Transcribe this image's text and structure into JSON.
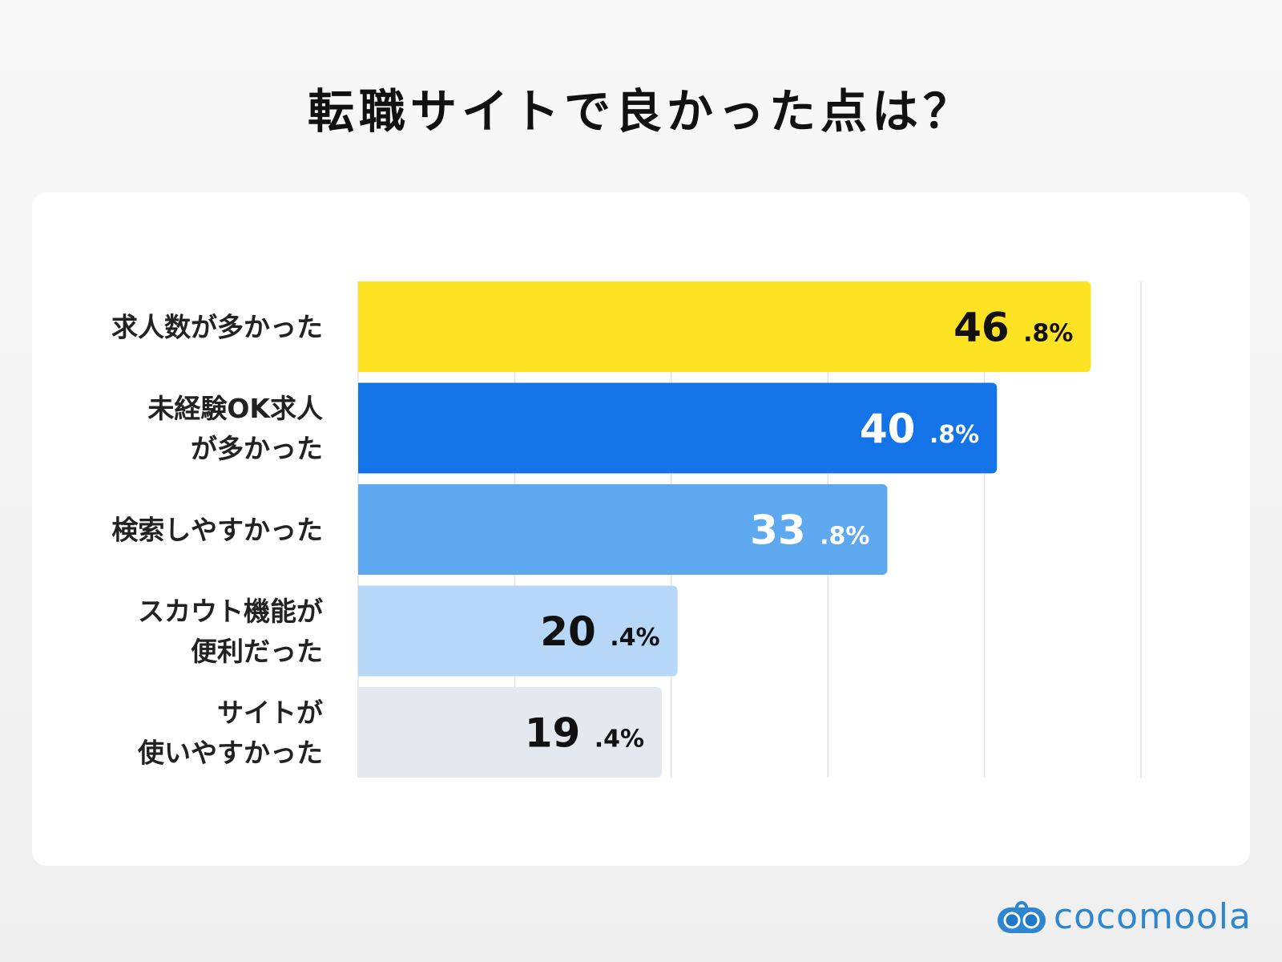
{
  "chart_data": {
    "type": "bar",
    "orientation": "horizontal",
    "title": "転職サイトで良かった点は？",
    "categories": [
      [
        "求人数が多かった"
      ],
      [
        "未経験OK求人",
        "が多かった"
      ],
      [
        "検索しやすかった"
      ],
      [
        "スカウト機能が",
        "便利だった"
      ],
      [
        "サイトが",
        "使いやすかった"
      ]
    ],
    "values": [
      46.8,
      40.8,
      33.8,
      20.4,
      19.4
    ],
    "value_unit": "%",
    "bar_colors": [
      "#fde324",
      "#1473e6",
      "#5ea8ef",
      "#b6d7f8",
      "#e4e8ef"
    ],
    "label_colors": [
      "#111111",
      "#ffffff",
      "#ffffff",
      "#111111",
      "#111111"
    ],
    "xlim": [
      0,
      50
    ],
    "grid": true,
    "grid_step": 10
  },
  "logo": {
    "text": "cocomoola",
    "color": "#2e86d0"
  }
}
